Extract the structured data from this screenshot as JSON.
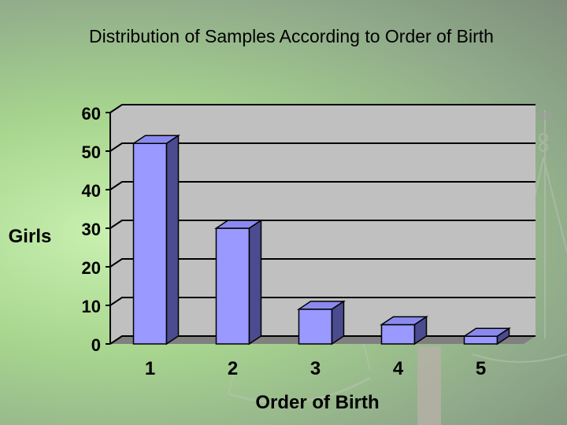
{
  "title": "Distribution of Samples According to Order of Birth",
  "chart_data": {
    "type": "bar",
    "title": "Distribution of Samples According to Order of Birth",
    "xlabel": "Order of Birth",
    "ylabel": "Girls",
    "categories": [
      "1",
      "2",
      "3",
      "4",
      "5"
    ],
    "values": [
      52,
      30,
      9,
      5,
      2
    ],
    "ylim": [
      0,
      60
    ],
    "yticks": [
      "0",
      "10",
      "20",
      "30",
      "40",
      "50",
      "60"
    ],
    "grid": true,
    "style": "3d",
    "colors": {
      "bar_front": "#9999ff",
      "bar_top": "#8a8aee",
      "bar_side": "#4b4b8f",
      "wall": "#c0c0c0",
      "floor": "#808080"
    }
  }
}
